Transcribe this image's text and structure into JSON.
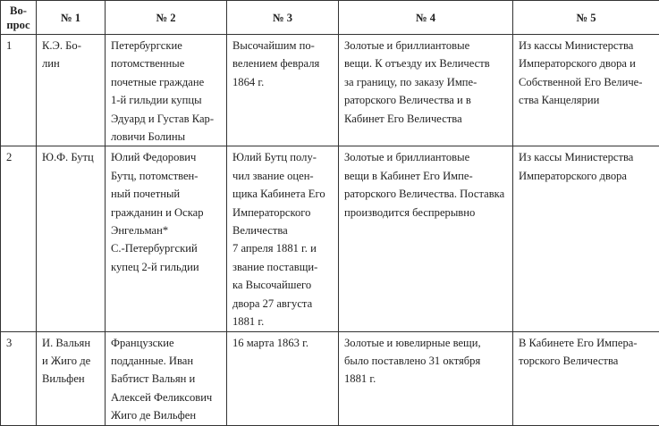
{
  "headers": [
    "Во-\nпрос",
    "№ 1",
    "№ 2",
    "№ 3",
    "№ 4",
    "№ 5"
  ],
  "rows": [
    [
      "1",
      "К.Э. Бо-\nлин",
      "Петербургские\nпотомственные\nпочетные граждане\n1-й гильдии купцы\nЭдуард и Густав Кар-\nловичи Болины",
      "Высочайшим по-\nвелением февраля\n1864 г.",
      "Золотые и бриллиантовые\nвещи. К отъезду их Величеств\nза границу, по заказу Импе-\nраторского Величества и в\nКабинет Его Величества",
      "Из кассы Министерства\nИмператорского двора и\nСобственной Его Величе-\nства Канцелярии"
    ],
    [
      "2",
      "Ю.Ф. Бутц",
      "Юлий Федорович\nБутц, потомствен-\nный почетный\nгражданин и Оскар\nЭнгельман*\nС.-Петербургский\nкупец 2-й гильдии",
      "Юлий Бутц полу-\nчил звание оцен-\nщика Кабинета Его\nИмператорского\nВеличества\n7 апреля 1881 г. и\nзвание поставщи-\nка Высочайшего\nдвора 27 августа\n1881 г.",
      "Золотые и бриллиантовые\nвещи в Кабинет Его Импе-\nраторского Величества. Поставка\nпроизводится беспрерывно",
      "Из кассы Министерства\nИмператорского двора"
    ],
    [
      "3",
      "И. Вальян\nи Жиго де\nВильфен",
      "Французские\nподданные. Иван\nБабтист Вальян и\nАлексей Феликсович\nЖиго де Вильфен",
      "16 марта 1863 г.",
      "Золотые и ювелирные вещи,\nбыло поставлено 31 октября\n1881 г.",
      "В Кабинете Его Импера-\nторского Величества"
    ]
  ]
}
